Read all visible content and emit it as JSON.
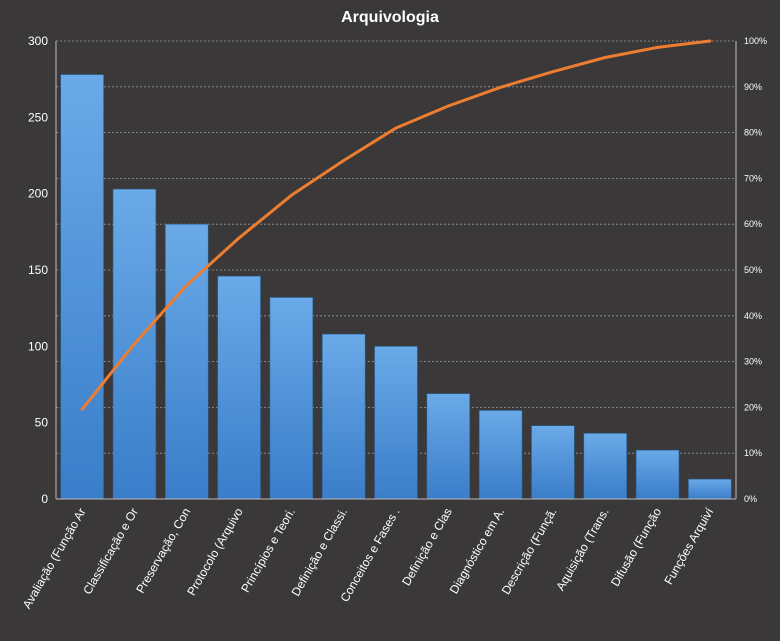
{
  "chart_data": {
    "type": "bar",
    "title": "Arquivologia",
    "categories": [
      "Avaliação (Função Ar",
      "Classificação e Or",
      "Preservação, Con",
      "Protocolo (Arquivo",
      "Princípios e Teori.",
      "Definição e Classi.",
      "Conceitos e Fases .",
      "Definição e Clas",
      "Diagnóstico em A.",
      "Descrição (Funçã.",
      "Aquisição (Trans.",
      "Difusão (Função",
      "Funções Arquiví"
    ],
    "series": [
      {
        "type": "bar",
        "axis": "left",
        "values": [
          278,
          203,
          180,
          146,
          132,
          108,
          100,
          69,
          58,
          48,
          43,
          32,
          13
        ]
      },
      {
        "type": "line",
        "axis": "right",
        "values": [
          19.6,
          33.9,
          46.7,
          57.0,
          66.3,
          73.9,
          81.0,
          85.8,
          89.9,
          93.3,
          96.4,
          98.6,
          100.0
        ]
      }
    ],
    "ylim": [
      0,
      300
    ],
    "yticks": [
      "0",
      "50",
      "100",
      "150",
      "200",
      "250",
      "300"
    ],
    "y2lim": [
      0,
      100
    ],
    "y2ticks": [
      "0%",
      "10%",
      "20%",
      "30%",
      "40%",
      "50%",
      "60%",
      "70%",
      "80%",
      "90%",
      "100%"
    ],
    "grid": true,
    "colors": {
      "background": "#3a3838",
      "bar_top": "#6aaae8",
      "bar_bottom": "#3a7dc9",
      "line": "#ed7d31"
    }
  }
}
